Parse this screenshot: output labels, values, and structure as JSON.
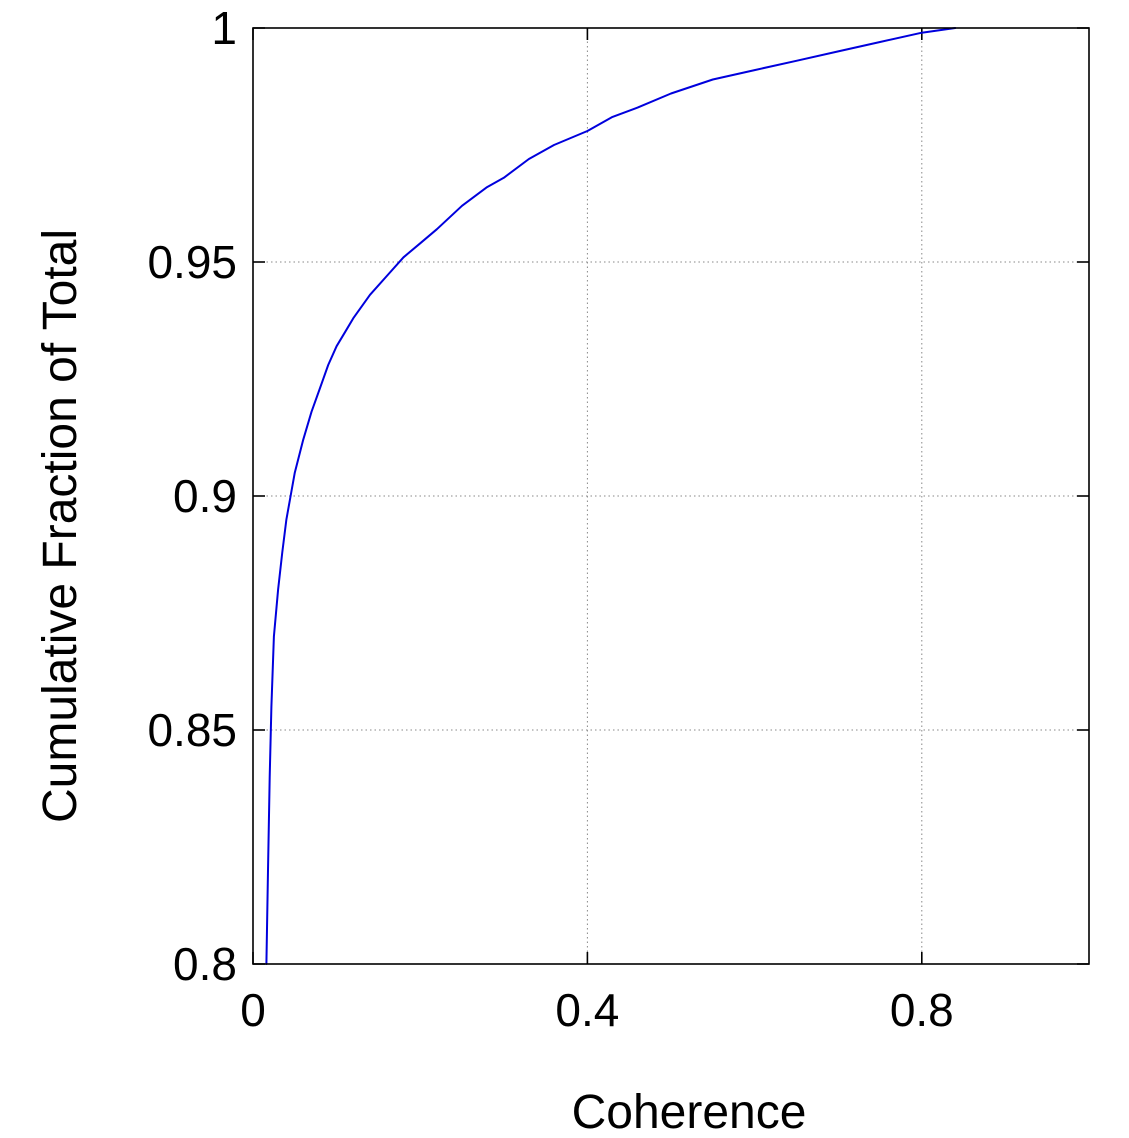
{
  "chart_data": {
    "type": "line",
    "title": "",
    "xlabel": "Coherence",
    "ylabel": "Cumulative Fraction of Total",
    "xlim": [
      0,
      1
    ],
    "ylim": [
      0.8,
      1
    ],
    "x_ticks": [
      0,
      0.4,
      0.8
    ],
    "x_tick_labels": [
      "0",
      "0.4",
      "0.8"
    ],
    "y_ticks": [
      0.8,
      0.85,
      0.9,
      0.95,
      1
    ],
    "y_tick_labels": [
      "0.8",
      "0.85",
      "0.9",
      "0.95",
      "1"
    ],
    "grid": true,
    "grid_style": "dotted",
    "legend": "none",
    "series": [
      {
        "color": "#0000dd",
        "x": [
          0.016,
          0.018,
          0.02,
          0.022,
          0.025,
          0.03,
          0.035,
          0.04,
          0.045,
          0.05,
          0.06,
          0.07,
          0.08,
          0.09,
          0.1,
          0.11,
          0.12,
          0.14,
          0.16,
          0.18,
          0.2,
          0.22,
          0.25,
          0.28,
          0.3,
          0.33,
          0.36,
          0.4,
          0.43,
          0.46,
          0.5,
          0.55,
          0.6,
          0.65,
          0.7,
          0.75,
          0.8,
          0.84
        ],
        "y": [
          0.8,
          0.82,
          0.84,
          0.855,
          0.87,
          0.88,
          0.888,
          0.895,
          0.9,
          0.905,
          0.912,
          0.918,
          0.923,
          0.928,
          0.932,
          0.935,
          0.938,
          0.943,
          0.947,
          0.951,
          0.954,
          0.957,
          0.962,
          0.966,
          0.968,
          0.972,
          0.975,
          0.978,
          0.981,
          0.983,
          0.986,
          0.989,
          0.991,
          0.993,
          0.995,
          0.997,
          0.999,
          1.0
        ]
      }
    ]
  }
}
